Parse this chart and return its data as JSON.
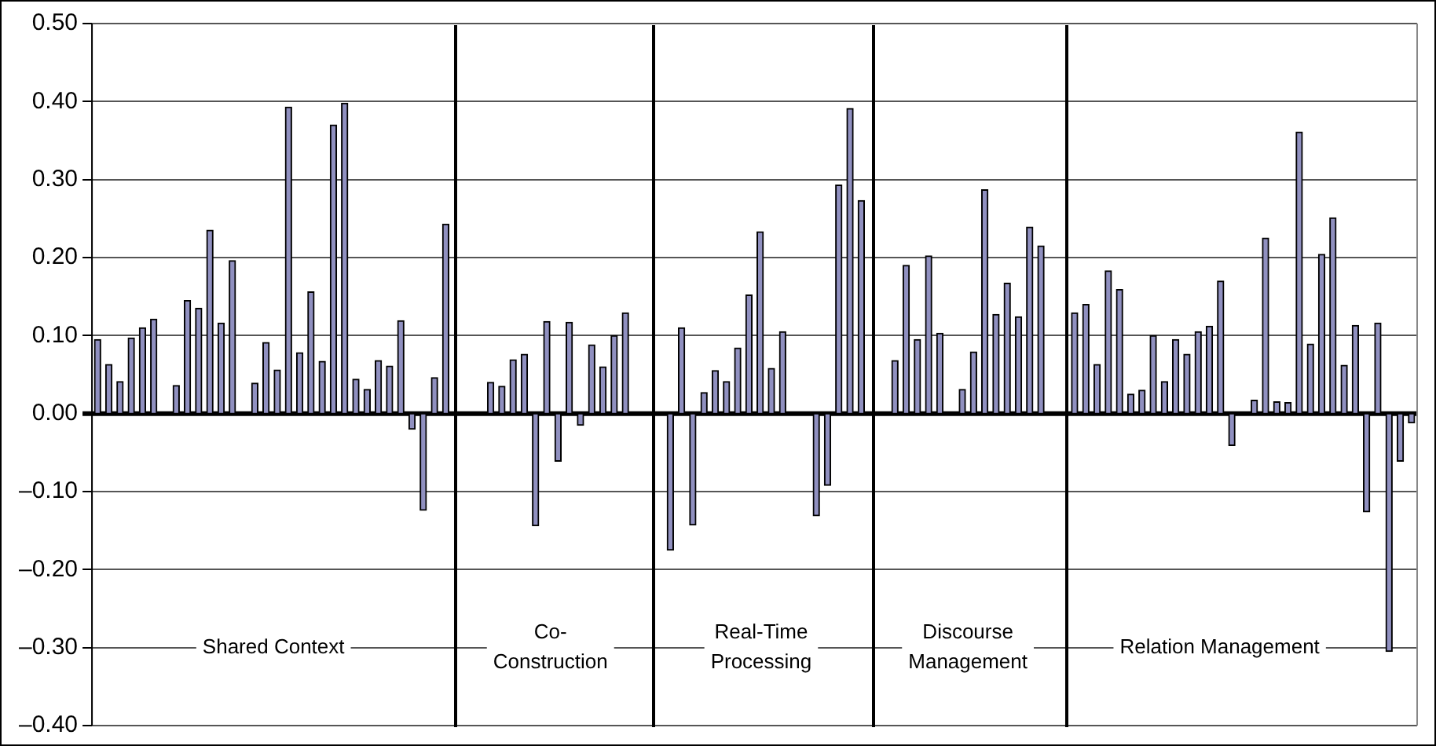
{
  "chart_data": {
    "type": "bar",
    "color": "#9090c0",
    "categories": [
      null,
      null,
      null,
      null,
      null,
      null,
      null,
      null,
      null,
      null,
      null,
      null,
      null,
      null,
      null,
      null,
      null,
      null,
      null,
      null,
      null,
      null,
      null,
      null,
      null,
      null,
      null,
      null,
      null,
      null,
      null,
      null,
      null,
      null,
      null,
      null,
      null,
      null,
      null,
      null,
      null,
      null,
      null,
      null,
      null,
      null,
      null,
      null,
      null,
      null,
      null,
      null,
      null,
      null,
      null,
      null,
      null,
      null,
      null,
      null,
      null,
      null,
      null,
      null,
      null,
      null,
      null,
      null,
      null,
      null,
      null,
      null,
      null,
      null,
      null,
      null,
      null,
      null,
      null,
      null,
      null,
      null,
      null,
      null,
      null,
      null,
      null,
      null,
      null,
      null,
      null,
      null,
      null,
      null,
      null,
      null,
      null,
      null,
      null,
      null,
      null,
      null,
      null,
      null,
      null,
      null,
      null,
      null,
      null,
      null,
      null,
      null,
      null,
      null,
      null,
      null,
      null,
      null
    ],
    "values": [
      0.095,
      0.063,
      0.041,
      0.097,
      0.11,
      0.121,
      0,
      0.036,
      0.145,
      0.135,
      0.235,
      0.116,
      0.196,
      0,
      0.039,
      0.091,
      0.056,
      0.393,
      0.078,
      0.156,
      0.067,
      0.37,
      0.398,
      0.044,
      0.031,
      0.068,
      0.061,
      0.119,
      -0.02,
      -0.124,
      0.046,
      0.243,
      0,
      0,
      0,
      0.04,
      0.035,
      0.069,
      0.076,
      -0.144,
      0.118,
      -0.061,
      0.117,
      -0.015,
      0.088,
      0.06,
      0.1,
      0.129,
      0,
      0,
      0,
      -0.175,
      0.11,
      -0.143,
      0.027,
      0.055,
      0.041,
      0.084,
      0.152,
      0.233,
      0.058,
      0.105,
      0,
      0,
      -0.131,
      -0.092,
      0.293,
      0.391,
      0.273,
      0,
      0,
      0.068,
      0.19,
      0.095,
      0.202,
      0.103,
      0,
      0.031,
      0.079,
      0.287,
      0.127,
      0.167,
      0.124,
      0.239,
      0.215,
      0,
      0,
      0.129,
      0.14,
      0.063,
      0.183,
      0.159,
      0.025,
      0.03,
      0.1,
      0.041,
      0.095,
      0.076,
      0.105,
      0.112,
      0.17,
      -0.041,
      0,
      0.017,
      0.225,
      0.015,
      0.014,
      0.361,
      0.089,
      0.204,
      0.251,
      0.062,
      0.113,
      -0.126,
      0.116,
      -0.305,
      -0.061,
      -0.012
    ],
    "ylim": [
      -0.4,
      0.5
    ],
    "yticks": [
      {
        "value": 0.5,
        "label": "0.50"
      },
      {
        "value": 0.4,
        "label": "0.40"
      },
      {
        "value": 0.3,
        "label": "0.30"
      },
      {
        "value": 0.2,
        "label": "0.20"
      },
      {
        "value": 0.1,
        "label": "0.10"
      },
      {
        "value": 0,
        "label": "0.00"
      },
      {
        "value": -0.1,
        "label": "–0.10"
      },
      {
        "value": -0.2,
        "label": "–0.20"
      },
      {
        "value": -0.3,
        "label": "–0.30"
      },
      {
        "value": -0.4,
        "label": "–0.40"
      }
    ],
    "grid": "y",
    "tick_labels": "y",
    "annotations": [
      "Shared Context",
      "Co-\nConstruction",
      "Real-Time\nProcessing",
      "Discourse\nManagement",
      "Relation Management"
    ]
  }
}
